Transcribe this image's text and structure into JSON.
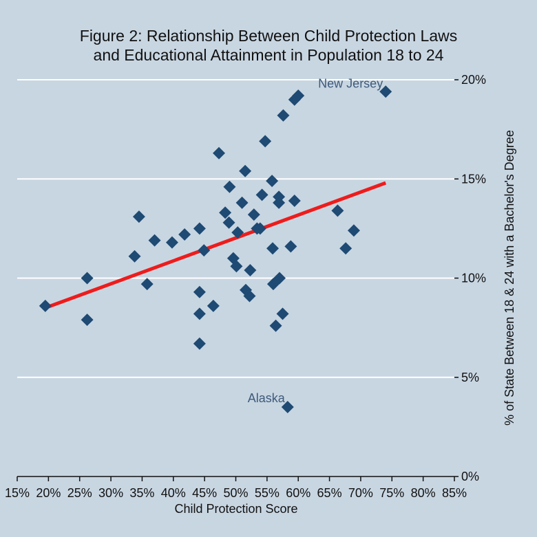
{
  "chart_data": {
    "type": "scatter",
    "title_lines": [
      "Figure 2: Relationship Between Child Protection Laws",
      "and Educational Attainment in Population 18 to 24"
    ],
    "xlabel": "Child Protection Score",
    "ylabel": "% of State Between 18 & 24 with a Bachelor's Degree",
    "xlim": [
      15,
      85
    ],
    "ylim": [
      0,
      20
    ],
    "x_ticks": [
      15,
      20,
      25,
      30,
      35,
      40,
      45,
      50,
      55,
      60,
      65,
      70,
      75,
      80,
      85
    ],
    "x_tick_labels": [
      "15%",
      "20%",
      "25%",
      "30%",
      "35%",
      "40%",
      "45%",
      "50%",
      "55%",
      "60%",
      "65%",
      "70%",
      "75%",
      "80%",
      "85%"
    ],
    "y_ticks": [
      0,
      5,
      10,
      15,
      20
    ],
    "y_tick_labels": [
      "0%",
      "5%",
      "10%",
      "15%",
      "20%"
    ],
    "y_axis_side": "right",
    "grid": "horizontal",
    "colors": {
      "background": "#c8d6e2",
      "grid": "#ffffff",
      "marker": "#1e4a73",
      "fit_line": "#ee1c1c",
      "annotation": "#3e5a7a",
      "text": "#111111"
    },
    "series": [
      {
        "marker": "diamond",
        "points": [
          [
            19.5,
            8.6
          ],
          [
            26.2,
            10.0
          ],
          [
            26.2,
            7.9
          ],
          [
            33.8,
            11.1
          ],
          [
            34.5,
            13.1
          ],
          [
            35.8,
            9.7
          ],
          [
            37.0,
            11.9
          ],
          [
            39.8,
            11.8
          ],
          [
            41.8,
            12.2
          ],
          [
            44.2,
            12.5
          ],
          [
            44.9,
            11.4
          ],
          [
            44.2,
            9.3
          ],
          [
            44.2,
            8.2
          ],
          [
            44.2,
            6.7
          ],
          [
            46.4,
            8.6
          ],
          [
            47.3,
            16.3
          ],
          [
            48.3,
            13.3
          ],
          [
            49.0,
            14.6
          ],
          [
            48.9,
            12.8
          ],
          [
            49.6,
            11.0
          ],
          [
            50.1,
            10.6
          ],
          [
            50.3,
            12.3
          ],
          [
            51.0,
            13.8
          ],
          [
            51.5,
            15.4
          ],
          [
            51.6,
            9.4
          ],
          [
            52.2,
            9.1
          ],
          [
            52.3,
            10.4
          ],
          [
            52.9,
            13.2
          ],
          [
            53.4,
            12.5
          ],
          [
            53.9,
            12.5
          ],
          [
            54.2,
            14.2
          ],
          [
            54.7,
            16.9
          ],
          [
            55.8,
            14.9
          ],
          [
            55.9,
            11.5
          ],
          [
            56.0,
            9.7
          ],
          [
            56.4,
            7.6
          ],
          [
            56.9,
            14.1
          ],
          [
            56.9,
            13.8
          ],
          [
            57.0,
            10.0
          ],
          [
            57.5,
            8.2
          ],
          [
            57.6,
            18.2
          ],
          [
            58.3,
            3.5
          ],
          [
            58.8,
            11.6
          ],
          [
            59.4,
            13.9
          ],
          [
            59.4,
            19.0
          ],
          [
            60.0,
            19.2
          ],
          [
            66.3,
            13.4
          ],
          [
            67.6,
            11.5
          ],
          [
            68.9,
            12.4
          ],
          [
            74.0,
            19.4
          ]
        ]
      }
    ],
    "fit_line": {
      "x": [
        19.5,
        74.0
      ],
      "y": [
        8.5,
        14.8
      ]
    },
    "annotations": [
      {
        "text": "New Jersey",
        "x": 74.0,
        "y": 19.4
      },
      {
        "text": "Alaska",
        "x": 58.3,
        "y": 3.5
      }
    ]
  }
}
